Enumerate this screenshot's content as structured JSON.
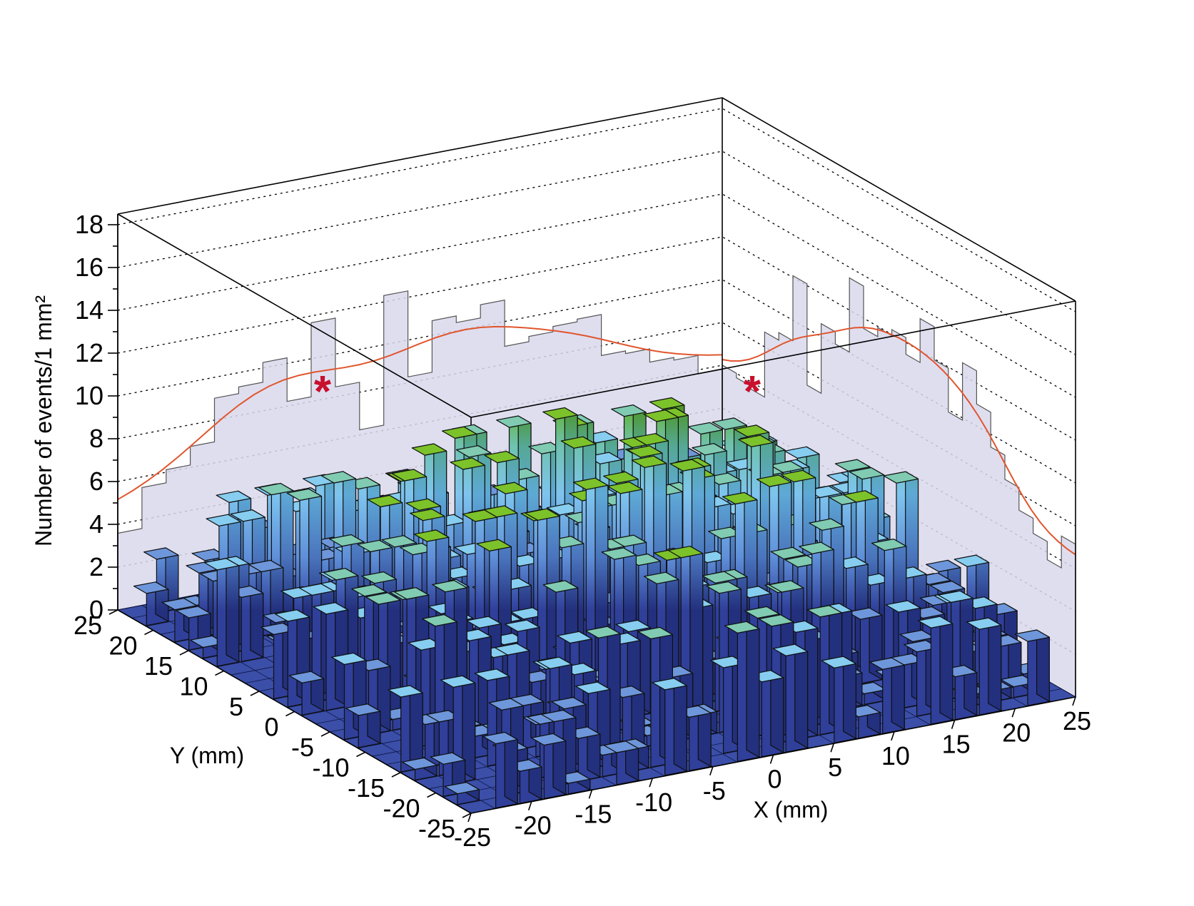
{
  "chart_data": {
    "type": "lego3d",
    "zlabel": "Number of events/1 mm²",
    "xlabel": "X (mm)",
    "ylabel": "Y (mm)",
    "xlim": [
      -25,
      25
    ],
    "ylim": [
      -25,
      25
    ],
    "zlim": [
      0,
      18
    ],
    "x_ticks": [
      "-25",
      "-20",
      "-15",
      "-10",
      "-5",
      "0",
      "5",
      "10",
      "15",
      "20",
      "25"
    ],
    "y_ticks": [
      "25",
      "20",
      "15",
      "10",
      "5",
      "0",
      "-5",
      "-10",
      "-15",
      "-20",
      "-25"
    ],
    "z_ticks": [
      "0",
      "2",
      "4",
      "6",
      "8",
      "10",
      "12",
      "14",
      "16",
      "18"
    ],
    "bins_per_axis": 25,
    "bin_width_mm": 2,
    "bin_z_min": 0.5,
    "bin_z_max": 9.8,
    "projection_x_marker": "*",
    "projection_y_marker": "*",
    "projection_x_peak_z": 13.5,
    "projection_y_peak_z": 12.3,
    "colors": {
      "floor": "#3b4ea8",
      "low": "#3d58b0",
      "mid": "#6fb8ec",
      "high": "#6cb020",
      "projection": "#d9d8ec",
      "fit": "#e0562e",
      "marker": "#c8102e"
    }
  }
}
